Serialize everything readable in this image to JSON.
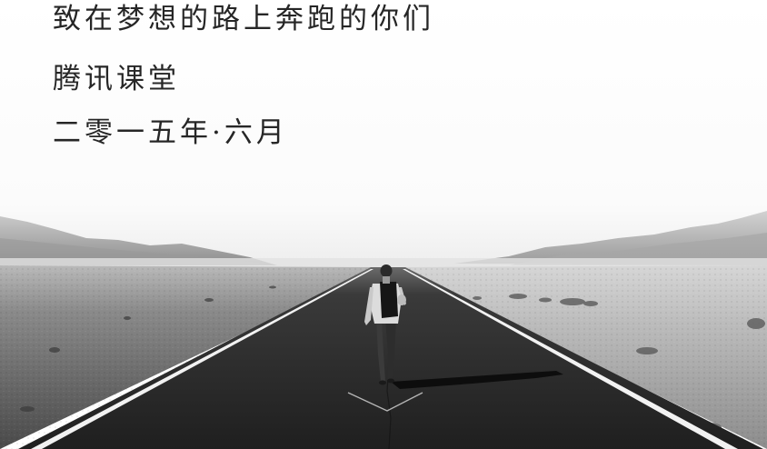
{
  "text": {
    "line1": "致在梦想的路上奔跑的你们",
    "line2": "腾讯课堂",
    "line3": "二零一五年·六月"
  },
  "colors": {
    "text": "#262626",
    "sky": "#ffffff",
    "road": "#2a2a2a",
    "road_lines": "#f2f2f2"
  },
  "image": {
    "subject": "man-walking-icon",
    "scene": "desert-road"
  }
}
